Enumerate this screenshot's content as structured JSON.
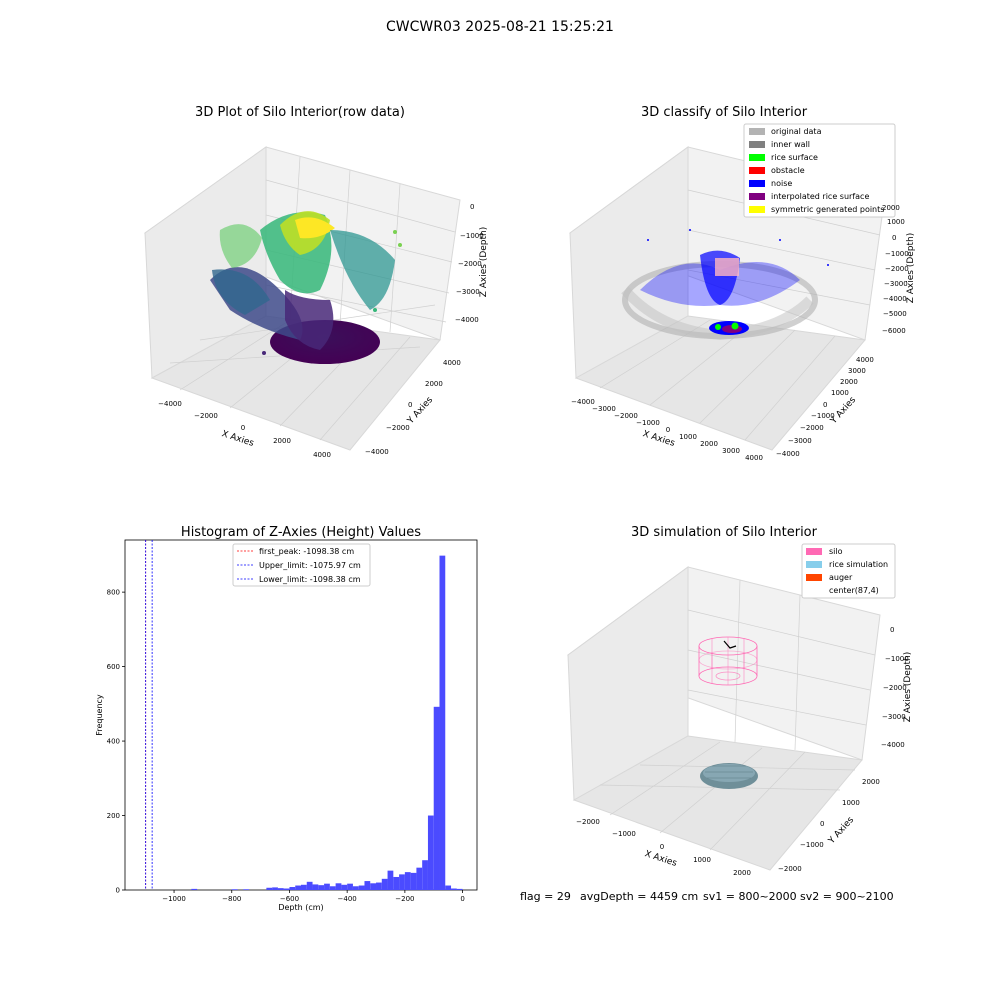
{
  "figure": {
    "suptitle": "CWCWR03 2025-08-21 15:25:21",
    "footer": {
      "flag": "flag = 29",
      "avg_depth": "avgDepth = 4459 cm",
      "sv1": "sv1 = 800~2000",
      "sv2": "sv2 = 900~2100"
    }
  },
  "chart_data": [
    {
      "type": "scatter3d",
      "title": "3D Plot of Silo Interior(row data)",
      "xlabel": "X Axies",
      "ylabel": "Y Axies",
      "zlabel": "Z Axies (Depth)",
      "xticks": [
        -4000,
        -2000,
        0,
        2000,
        4000
      ],
      "yticks": [
        -4000,
        -2000,
        0,
        2000,
        4000
      ],
      "zticks": [
        0,
        -1000,
        -2000,
        -3000,
        -4000
      ],
      "colormap": "viridis"
    },
    {
      "type": "scatter3d",
      "title": "3D classify of Silo Interior",
      "xlabel": "X Axies",
      "ylabel": "Y Axies",
      "zlabel": "Z Axies (Depth)",
      "xticks": [
        -4000,
        -3000,
        -2000,
        -1000,
        0,
        1000,
        2000,
        3000,
        4000
      ],
      "yticks": [
        -4000,
        -3000,
        -2000,
        -1000,
        0,
        1000,
        2000,
        3000,
        4000
      ],
      "zticks": [
        2000,
        1000,
        0,
        -1000,
        -2000,
        -3000,
        -4000,
        -5000,
        -6000
      ],
      "legend": [
        {
          "label": "original data",
          "color": "#b3b3b3"
        },
        {
          "label": "inner wall",
          "color": "#808080"
        },
        {
          "label": "rice surface",
          "color": "#00ff00"
        },
        {
          "label": "obstacle",
          "color": "#ff0000"
        },
        {
          "label": "noise",
          "color": "#0000ff"
        },
        {
          "label": "interpolated rice surface",
          "color": "#800080"
        },
        {
          "label": "symmetric generated points",
          "color": "#ffff00"
        }
      ],
      "legend_loc": "upper right"
    },
    {
      "type": "bar",
      "title": "Histogram of Z-Axies (Height) Values",
      "xlabel": "Depth (cm)",
      "ylabel": "Frequency",
      "xlim": [
        -1170,
        50
      ],
      "ylim": [
        0,
        940
      ],
      "xticks": [
        -1000,
        -800,
        -600,
        -400,
        -200,
        0
      ],
      "yticks": [
        0,
        200,
        400,
        600,
        800
      ],
      "bin_width": 20,
      "bar_color": "#4b4bff",
      "bins": [
        {
          "x": -940,
          "y": 3
        },
        {
          "x": -800,
          "y": 2
        },
        {
          "x": -760,
          "y": 2
        },
        {
          "x": -680,
          "y": 6
        },
        {
          "x": -660,
          "y": 7
        },
        {
          "x": -640,
          "y": 5
        },
        {
          "x": -620,
          "y": 4
        },
        {
          "x": -600,
          "y": 8
        },
        {
          "x": -580,
          "y": 12
        },
        {
          "x": -560,
          "y": 14
        },
        {
          "x": -540,
          "y": 22
        },
        {
          "x": -520,
          "y": 15
        },
        {
          "x": -500,
          "y": 13
        },
        {
          "x": -480,
          "y": 17
        },
        {
          "x": -460,
          "y": 10
        },
        {
          "x": -440,
          "y": 18
        },
        {
          "x": -420,
          "y": 14
        },
        {
          "x": -400,
          "y": 17
        },
        {
          "x": -380,
          "y": 10
        },
        {
          "x": -360,
          "y": 12
        },
        {
          "x": -340,
          "y": 24
        },
        {
          "x": -320,
          "y": 18
        },
        {
          "x": -300,
          "y": 20
        },
        {
          "x": -280,
          "y": 30
        },
        {
          "x": -260,
          "y": 52
        },
        {
          "x": -240,
          "y": 35
        },
        {
          "x": -220,
          "y": 42
        },
        {
          "x": -200,
          "y": 48
        },
        {
          "x": -180,
          "y": 46
        },
        {
          "x": -160,
          "y": 60
        },
        {
          "x": -140,
          "y": 80
        },
        {
          "x": -120,
          "y": 200
        },
        {
          "x": -100,
          "y": 492
        },
        {
          "x": -80,
          "y": 898
        },
        {
          "x": -60,
          "y": 12
        },
        {
          "x": -40,
          "y": 4
        },
        {
          "x": -20,
          "y": 3
        }
      ],
      "vlines": [
        {
          "label": "first_peak: -1098.38 cm",
          "x": -1098.38,
          "color": "#ff0000"
        },
        {
          "label": "Upper_limit: -1075.97 cm",
          "x": -1075.97,
          "color": "#0000ff"
        },
        {
          "label": "Lower_limit: -1098.38 cm",
          "x": -1098.38,
          "color": "#0000ff"
        }
      ],
      "legend_loc": "upper center"
    },
    {
      "type": "wireframe3d",
      "title": "3D simulation of Silo Interior",
      "xlabel": "X Axies",
      "ylabel": "Y Axies",
      "zlabel": "Z Axies (Depth)",
      "xticks": [
        -2000,
        -1000,
        0,
        1000,
        2000
      ],
      "yticks": [
        -2000,
        -1000,
        0,
        1000,
        2000
      ],
      "zticks": [
        0,
        -1000,
        -2000,
        -3000,
        -4000
      ],
      "legend": [
        {
          "label": "silo",
          "color": "#ff69b4"
        },
        {
          "label": "rice simulation",
          "color": "#87ceeb"
        },
        {
          "label": "auger",
          "color": "#ff4500"
        },
        {
          "label": "center(87,4)",
          "color": "#ffffff"
        }
      ],
      "legend_loc": "upper right"
    }
  ]
}
